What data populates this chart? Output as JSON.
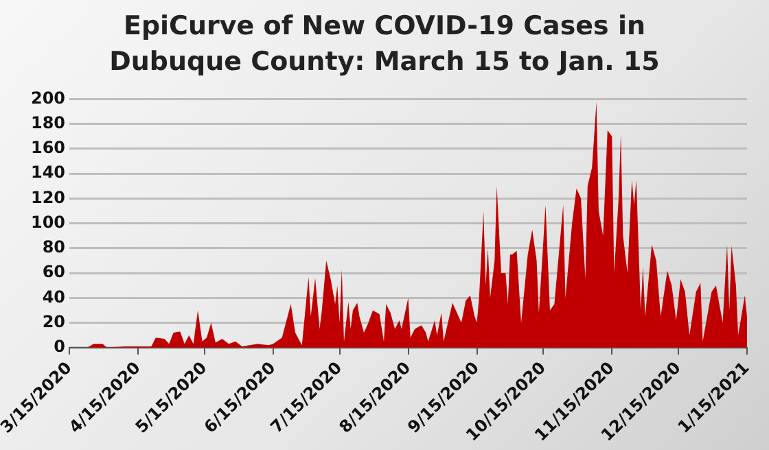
{
  "chart_data": {
    "type": "area",
    "title": "EpiCurve of New COVID-19 Cases in Dubuque County: March 15 to Jan. 15",
    "x": [
      "2020-03-15",
      "2020-03-23",
      "2020-03-26",
      "2020-03-30",
      "2020-04-01",
      "2020-04-09",
      "2020-04-21",
      "2020-04-23",
      "2020-04-27",
      "2020-04-29",
      "2020-05-01",
      "2020-05-04",
      "2020-05-06",
      "2020-05-08",
      "2020-05-10",
      "2020-05-12",
      "2020-05-14",
      "2020-05-16",
      "2020-05-18",
      "2020-05-20",
      "2020-05-23",
      "2020-05-26",
      "2020-05-29",
      "2020-06-01",
      "2020-06-08",
      "2020-06-13",
      "2020-06-15",
      "2020-06-19",
      "2020-06-23",
      "2020-06-25",
      "2020-06-28",
      "2020-07-01",
      "2020-07-02",
      "2020-07-04",
      "2020-07-06",
      "2020-07-07",
      "2020-07-09",
      "2020-07-11",
      "2020-07-13",
      "2020-07-14",
      "2020-07-15",
      "2020-07-16",
      "2020-07-17",
      "2020-07-19",
      "2020-07-20",
      "2020-07-21",
      "2020-07-23",
      "2020-07-24",
      "2020-07-26",
      "2020-07-28",
      "2020-07-30",
      "2020-08-02",
      "2020-08-04",
      "2020-08-05",
      "2020-08-07",
      "2020-08-09",
      "2020-08-11",
      "2020-08-12",
      "2020-08-15",
      "2020-08-16",
      "2020-08-18",
      "2020-08-21",
      "2020-08-23",
      "2020-08-24",
      "2020-08-27",
      "2020-08-28",
      "2020-08-30",
      "2020-08-31",
      "2020-09-04",
      "2020-09-06",
      "2020-09-08",
      "2020-09-10",
      "2020-09-12",
      "2020-09-14",
      "2020-09-15",
      "2020-09-16",
      "2020-09-18",
      "2020-09-19",
      "2020-09-20",
      "2020-09-21",
      "2020-09-23",
      "2020-09-24",
      "2020-09-26",
      "2020-09-28",
      "2020-09-29",
      "2020-09-30",
      "2020-10-01",
      "2020-10-03",
      "2020-10-05",
      "2020-10-08",
      "2020-10-10",
      "2020-10-12",
      "2020-10-13",
      "2020-10-15",
      "2020-10-16",
      "2020-10-18",
      "2020-10-20",
      "2020-10-24",
      "2020-10-25",
      "2020-10-28",
      "2020-10-30",
      "2020-11-01",
      "2020-11-03",
      "2020-11-04",
      "2020-11-06",
      "2020-11-08",
      "2020-11-09",
      "2020-11-11",
      "2020-11-13",
      "2020-11-15",
      "2020-11-16",
      "2020-11-18",
      "2020-11-19",
      "2020-11-20",
      "2020-11-22",
      "2020-11-24",
      "2020-11-25",
      "2020-11-26",
      "2020-11-28",
      "2020-11-29",
      "2020-11-30",
      "2020-12-03",
      "2020-12-05",
      "2020-12-07",
      "2020-12-10",
      "2020-12-12",
      "2020-12-14",
      "2020-12-16",
      "2020-12-18",
      "2020-12-20",
      "2020-12-23",
      "2020-12-25",
      "2020-12-26",
      "2020-12-29",
      "2020-12-30",
      "2021-01-01",
      "2021-01-03",
      "2021-01-04",
      "2021-01-06",
      "2021-01-07",
      "2021-01-08",
      "2021-01-10",
      "2021-01-11",
      "2021-01-14",
      "2021-01-15"
    ],
    "series": [
      {
        "color": "#c00000",
        "values": [
          0,
          0,
          3,
          3,
          0,
          1,
          1,
          8,
          7,
          3,
          12,
          13,
          3,
          10,
          3,
          30,
          5,
          8,
          20,
          4,
          7,
          3,
          5,
          1,
          3,
          2,
          3,
          8,
          35,
          12,
          2,
          57,
          25,
          56,
          15,
          30,
          70,
          55,
          35,
          50,
          20,
          63,
          5,
          37,
          15,
          30,
          36,
          25,
          12,
          20,
          30,
          27,
          5,
          35,
          28,
          15,
          22,
          15,
          40,
          8,
          15,
          18,
          12,
          5,
          22,
          10,
          28,
          5,
          36,
          28,
          20,
          38,
          42,
          25,
          20,
          40,
          110,
          50,
          80,
          40,
          70,
          130,
          60,
          60,
          35,
          75,
          75,
          78,
          20,
          75,
          95,
          70,
          28,
          85,
          115,
          30,
          35,
          115,
          40,
          100,
          128,
          120,
          55,
          130,
          145,
          198,
          110,
          90,
          175,
          170,
          60,
          120,
          172,
          90,
          60,
          135,
          115,
          135,
          30,
          65,
          25,
          83,
          70,
          25,
          62,
          50,
          22,
          55,
          45,
          10,
          45,
          52,
          5,
          35,
          45,
          50,
          30,
          20,
          83,
          30,
          82,
          50,
          10,
          42,
          25
        ]
      }
    ],
    "xlim": [
      "2020-03-15",
      "2021-01-15"
    ],
    "xticks": [
      {
        "value": "2020-03-15",
        "label": "3/15/2020"
      },
      {
        "value": "2020-04-15",
        "label": "4/15/2020"
      },
      {
        "value": "2020-05-15",
        "label": "5/15/2020"
      },
      {
        "value": "2020-06-15",
        "label": "6/15/2020"
      },
      {
        "value": "2020-07-15",
        "label": "7/15/2020"
      },
      {
        "value": "2020-08-15",
        "label": "8/15/2020"
      },
      {
        "value": "2020-09-15",
        "label": "9/15/2020"
      },
      {
        "value": "2020-10-15",
        "label": "10/15/2020"
      },
      {
        "value": "2020-11-15",
        "label": "11/15/2020"
      },
      {
        "value": "2020-12-15",
        "label": "12/15/2020"
      },
      {
        "value": "2021-01-15",
        "label": "1/15/2021"
      }
    ],
    "ylim": [
      0,
      200
    ],
    "yticks": [
      0,
      20,
      40,
      60,
      80,
      100,
      120,
      140,
      160,
      180,
      200
    ],
    "grid": "y",
    "legend": false
  }
}
